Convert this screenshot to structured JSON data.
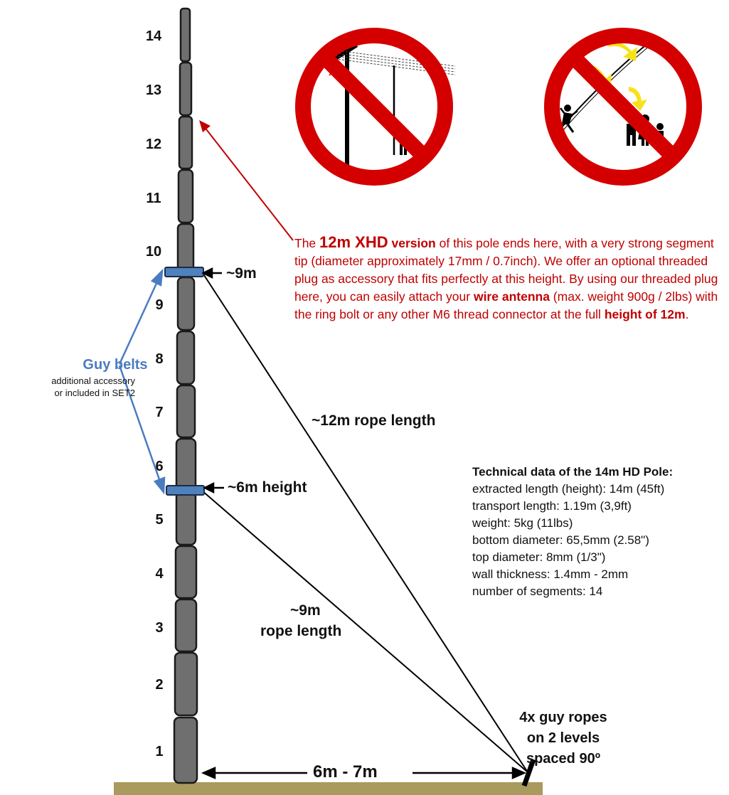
{
  "segment_numbers": [
    "1",
    "2",
    "3",
    "4",
    "5",
    "6",
    "7",
    "8",
    "9",
    "10",
    "11",
    "12",
    "13",
    "14"
  ],
  "markers": {
    "nine_m": "~9m",
    "six_m": "~6m height"
  },
  "rope_labels": {
    "long": "~12m rope length",
    "short_line1": "~9m",
    "short_line2": "rope length"
  },
  "distance_label": "6m - 7m",
  "guy_belts": {
    "title": "Guy belts",
    "sub_line1": "additional accessory",
    "sub_line2": "or included in SET2"
  },
  "guy_ropes": {
    "line1": "4x guy ropes",
    "line2": "on 2 levels",
    "line3": "spaced 90º"
  },
  "xhd_note": {
    "p1": "The ",
    "em1": "12m XHD",
    "em2": " version",
    "p2": " of this pole ends here, with a very strong segment tip (diameter approximately 17mm / 0.7inch). We offer an optional threaded plug as accessory that fits perfectly at this height.  By using our threaded plug here, you can easily attach your ",
    "em3": "wire antenna",
    "p3": " (max. weight 900g / 2lbs) with the ring bolt or any other M6 thread connector at the full ",
    "em4": "height of 12m",
    "p4": "."
  },
  "tech_data": {
    "title": "Technical data of the 14m HD Pole:",
    "lines": [
      "extracted length (height): 14m (45ft)",
      "transport length: 1.19m (3,9ft)",
      "weight: 5kg (11lbs)",
      "bottom diameter: 65,5mm (2.58\")",
      "top diameter: 8mm (1/3\")",
      "wall thickness: 1.4mm - 2mm",
      "number of segments: 14"
    ]
  },
  "warning_signs": [
    {
      "name": "no-power-lines"
    },
    {
      "name": "no-people-nearby"
    }
  ],
  "colors": {
    "warning_red": "#d40000",
    "note_red": "#c00000",
    "guy_blue": "#4a7cc0",
    "segment_gray": "#6f6f6f",
    "ground": "#a99a5d",
    "arrow_yellow": "#f7e21a"
  }
}
